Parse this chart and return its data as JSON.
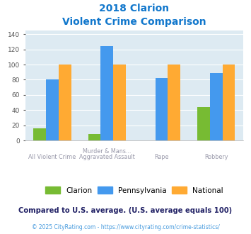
{
  "title_line1": "2018 Clarion",
  "title_line2": "Violent Crime Comparison",
  "categories_top": [
    "",
    "Murder & Mans...",
    "",
    ""
  ],
  "categories_bottom": [
    "All Violent Crime",
    "Aggravated Assault",
    "Rape",
    "Robbery"
  ],
  "clarion": [
    16,
    8,
    0,
    44
  ],
  "pennsylvania": [
    80,
    124,
    82,
    89
  ],
  "national": [
    100,
    100,
    100,
    100
  ],
  "clarion_color": "#77bb33",
  "pennsylvania_color": "#4499ee",
  "national_color": "#ffaa33",
  "bg_color": "#ddeaf2",
  "ylim": [
    0,
    145
  ],
  "yticks": [
    0,
    20,
    40,
    60,
    80,
    100,
    120,
    140
  ],
  "footer_text": "Compared to U.S. average. (U.S. average equals 100)",
  "copyright_text": "© 2025 CityRating.com - https://www.cityrating.com/crime-statistics/",
  "title_color": "#1177cc",
  "footer_color": "#222266",
  "copyright_color": "#4499dd"
}
